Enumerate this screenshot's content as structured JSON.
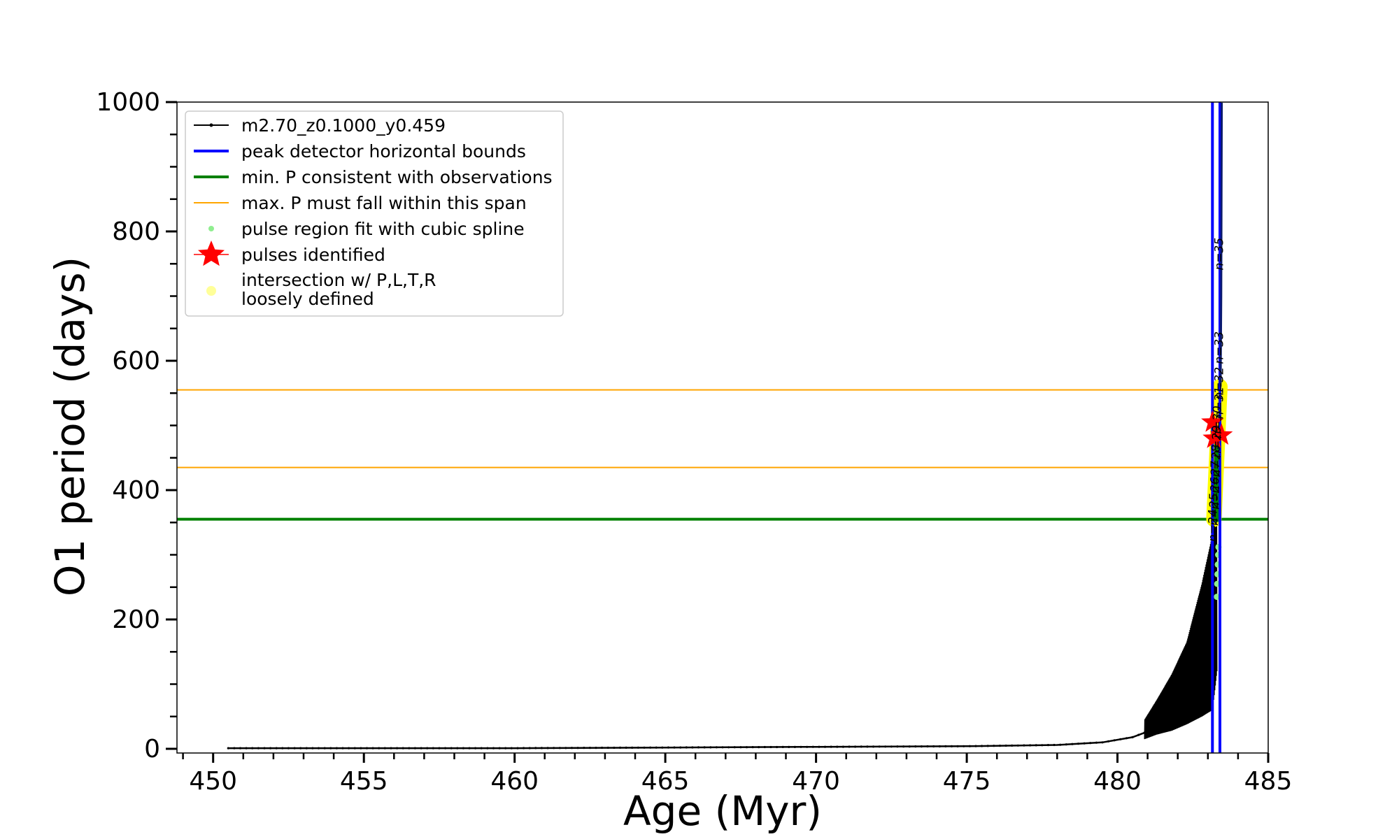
{
  "chart_data": {
    "type": "line",
    "title": "",
    "xlabel": "Age (Myr)",
    "ylabel": "O1 period (days)",
    "xlim": [
      448.8,
      485.0
    ],
    "ylim": [
      -10,
      1000
    ],
    "x_ticks": [
      450,
      455,
      460,
      465,
      470,
      475,
      480,
      485
    ],
    "y_ticks": [
      0,
      200,
      400,
      600,
      800,
      1000
    ],
    "grid": false,
    "legend_position": "top-left",
    "series": [
      {
        "name": "m2.70_z0.1000_y0.459",
        "style": "black line with small dot markers",
        "color": "#000000",
        "baseline_x": [
          450.5,
          455,
          460,
          465,
          470,
          475,
          478,
          479.5,
          480.5,
          480.9
        ],
        "baseline_y": [
          1,
          1,
          1,
          2,
          3,
          4,
          6,
          10,
          18,
          25
        ],
        "envelope_x": [
          480.9,
          481.3,
          481.8,
          482.3,
          482.8,
          483.15,
          483.3
        ],
        "envelope_upper_y": [
          45,
          75,
          115,
          165,
          255,
          330,
          360
        ],
        "envelope_lower_y": [
          15,
          22,
          28,
          38,
          50,
          60,
          120
        ]
      },
      {
        "name": "peak detector horizontal bounds",
        "style": "blue vertical lines",
        "color": "#0000ff",
        "x": [
          483.15,
          483.4
        ]
      },
      {
        "name": "min. P consistent with observations",
        "style": "green horizontal line",
        "color": "#008000",
        "y": 355
      },
      {
        "name": "max. P must fall within this span",
        "style": "orange horizontal lines",
        "color": "#ffa500",
        "y": [
          555,
          435
        ]
      },
      {
        "name": "pulse region fit with cubic spline",
        "style": "light green points",
        "color": "#90ee90",
        "x": [
          483.3,
          483.31,
          483.32,
          483.33,
          483.34,
          483.35
        ],
        "y": [
          235,
          255,
          270,
          285,
          300,
          312
        ]
      },
      {
        "name": "pulses identified",
        "style": "red star markers",
        "color": "#ff0000",
        "x": [
          483.15,
          483.2,
          483.45
        ],
        "y": [
          505,
          480,
          485
        ]
      },
      {
        "name": "intersection w/ P,L,T,R\nloosely defined",
        "style": "yellow points",
        "color": "#ffff00",
        "band_x": [
          483.2,
          483.4
        ],
        "band_y": [
          355,
          560
        ]
      }
    ],
    "annotations": [
      {
        "text": "n=35",
        "x": 483.5,
        "y": 740
      },
      {
        "text": "n=33",
        "x": 483.5,
        "y": 595
      },
      {
        "text": "n=32",
        "x": 483.5,
        "y": 540
      },
      {
        "text": "n=31",
        "x": 483.5,
        "y": 510
      },
      {
        "text": "n=30",
        "x": 483.45,
        "y": 480
      },
      {
        "text": "n=29",
        "x": 483.42,
        "y": 450
      },
      {
        "text": "n=28",
        "x": 483.4,
        "y": 420
      },
      {
        "text": "n=27",
        "x": 483.38,
        "y": 395
      },
      {
        "text": "n=26",
        "x": 483.36,
        "y": 370
      },
      {
        "text": "n=25",
        "x": 483.33,
        "y": 345
      },
      {
        "text": "n=24",
        "x": 483.3,
        "y": 320
      }
    ]
  }
}
